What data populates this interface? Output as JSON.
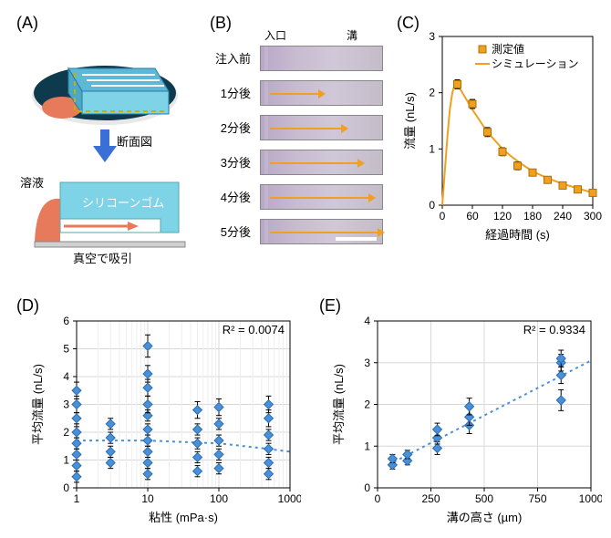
{
  "labels": {
    "A": "(A)",
    "B": "(B)",
    "C": "(C)",
    "D": "(D)",
    "E": "(E)"
  },
  "panelA": {
    "cross_section_title": "断面図",
    "solution_label": "溶液",
    "rubber_label": "シリコーンゴム",
    "vacuum_label": "真空で吸引",
    "dish_color": "#0d3b4d",
    "liquid_color": "#e67a5a",
    "rubber_color": "#7fd3e6",
    "rubber_text_color": "#ffffff",
    "arrow_color": "#e67a5a",
    "outline_color": "#c9b000"
  },
  "panelB": {
    "top_inlet": "入口",
    "top_groove": "溝",
    "rows": [
      {
        "label": "注入前",
        "arrow_len": 0
      },
      {
        "label": "1分後",
        "arrow_len": 55
      },
      {
        "label": "2分後",
        "arrow_len": 80
      },
      {
        "label": "3分後",
        "arrow_len": 98
      },
      {
        "label": "4分後",
        "arrow_len": 110
      },
      {
        "label": "5分後",
        "arrow_len": 120
      }
    ],
    "arrow_color": "#f0a020"
  },
  "panelC": {
    "type": "line+scatter",
    "xlabel": "経過時間 (s)",
    "ylabel": "流量 (nL/s)",
    "legend_measured": "測定値",
    "legend_sim": "シミュレーション",
    "xlim": [
      0,
      300
    ],
    "xtick_step": 60,
    "ylim": [
      0,
      3
    ],
    "ytick_step": 1,
    "marker_color": "#f0a020",
    "line_color": "#f0a020",
    "background": "#ffffff",
    "grid_color": "#d8d8d8",
    "sim_curve": [
      [
        0,
        0
      ],
      [
        5,
        0.6
      ],
      [
        10,
        1.2
      ],
      [
        15,
        1.7
      ],
      [
        20,
        2.0
      ],
      [
        25,
        2.15
      ],
      [
        30,
        2.15
      ],
      [
        40,
        2.0
      ],
      [
        50,
        1.85
      ],
      [
        60,
        1.7
      ],
      [
        75,
        1.5
      ],
      [
        90,
        1.3
      ],
      [
        105,
        1.15
      ],
      [
        120,
        1.0
      ],
      [
        140,
        0.85
      ],
      [
        160,
        0.72
      ],
      [
        180,
        0.6
      ],
      [
        210,
        0.48
      ],
      [
        240,
        0.38
      ],
      [
        270,
        0.3
      ],
      [
        300,
        0.22
      ]
    ],
    "points": [
      {
        "x": 30,
        "y": 2.15,
        "err": 0.08
      },
      {
        "x": 60,
        "y": 1.8,
        "err": 0.08
      },
      {
        "x": 90,
        "y": 1.3,
        "err": 0.08
      },
      {
        "x": 120,
        "y": 0.95,
        "err": 0.07
      },
      {
        "x": 150,
        "y": 0.7,
        "err": 0.07
      },
      {
        "x": 180,
        "y": 0.58,
        "err": 0.06
      },
      {
        "x": 210,
        "y": 0.45,
        "err": 0.06
      },
      {
        "x": 240,
        "y": 0.35,
        "err": 0.06
      },
      {
        "x": 270,
        "y": 0.28,
        "err": 0.05
      },
      {
        "x": 300,
        "y": 0.22,
        "err": 0.05
      }
    ]
  },
  "panelD": {
    "type": "scatter-logx",
    "xlabel": "粘性 (mPa·s)",
    "ylabel": "平均流量 (nL/s)",
    "r2_label": "R² = 0.0074",
    "xticks": [
      1,
      10,
      100,
      1000
    ],
    "ylim": [
      0,
      6
    ],
    "ytick_step": 1,
    "marker_color": "#4a90d9",
    "line_color": "#4a90d9",
    "grid_color": "#d8d8d8",
    "trend": [
      [
        1,
        1.7
      ],
      [
        10,
        1.7
      ],
      [
        100,
        1.6
      ],
      [
        500,
        1.4
      ],
      [
        1000,
        1.3
      ]
    ],
    "points": [
      {
        "x": 1,
        "y": 0.4,
        "err": 0.2
      },
      {
        "x": 1,
        "y": 0.8,
        "err": 0.2
      },
      {
        "x": 1,
        "y": 1.2,
        "err": 0.2
      },
      {
        "x": 1,
        "y": 1.6,
        "err": 0.2
      },
      {
        "x": 1,
        "y": 2.0,
        "err": 0.2
      },
      {
        "x": 1,
        "y": 2.5,
        "err": 0.2
      },
      {
        "x": 1,
        "y": 3.0,
        "err": 0.3
      },
      {
        "x": 1,
        "y": 3.5,
        "err": 0.3
      },
      {
        "x": 3,
        "y": 0.9,
        "err": 0.2
      },
      {
        "x": 3,
        "y": 1.3,
        "err": 0.2
      },
      {
        "x": 3,
        "y": 1.8,
        "err": 0.2
      },
      {
        "x": 3,
        "y": 2.3,
        "err": 0.2
      },
      {
        "x": 10,
        "y": 0.5,
        "err": 0.2
      },
      {
        "x": 10,
        "y": 0.9,
        "err": 0.2
      },
      {
        "x": 10,
        "y": 1.3,
        "err": 0.2
      },
      {
        "x": 10,
        "y": 1.7,
        "err": 0.2
      },
      {
        "x": 10,
        "y": 2.1,
        "err": 0.2
      },
      {
        "x": 10,
        "y": 2.6,
        "err": 0.2
      },
      {
        "x": 10,
        "y": 3.0,
        "err": 0.3
      },
      {
        "x": 10,
        "y": 3.6,
        "err": 0.3
      },
      {
        "x": 10,
        "y": 4.1,
        "err": 0.3
      },
      {
        "x": 10,
        "y": 5.1,
        "err": 0.4
      },
      {
        "x": 50,
        "y": 0.6,
        "err": 0.2
      },
      {
        "x": 50,
        "y": 1.1,
        "err": 0.2
      },
      {
        "x": 50,
        "y": 1.6,
        "err": 0.2
      },
      {
        "x": 50,
        "y": 2.1,
        "err": 0.2
      },
      {
        "x": 50,
        "y": 2.8,
        "err": 0.3
      },
      {
        "x": 100,
        "y": 0.7,
        "err": 0.2
      },
      {
        "x": 100,
        "y": 1.2,
        "err": 0.2
      },
      {
        "x": 100,
        "y": 1.7,
        "err": 0.2
      },
      {
        "x": 100,
        "y": 2.3,
        "err": 0.2
      },
      {
        "x": 100,
        "y": 2.9,
        "err": 0.3
      },
      {
        "x": 500,
        "y": 0.5,
        "err": 0.2
      },
      {
        "x": 500,
        "y": 0.9,
        "err": 0.2
      },
      {
        "x": 500,
        "y": 1.4,
        "err": 0.2
      },
      {
        "x": 500,
        "y": 1.9,
        "err": 0.2
      },
      {
        "x": 500,
        "y": 2.5,
        "err": 0.3
      },
      {
        "x": 500,
        "y": 3.0,
        "err": 0.3
      }
    ]
  },
  "panelE": {
    "type": "scatter",
    "xlabel": "溝の高さ (µm)",
    "ylabel": "平均流量 (nL/s)",
    "r2_label": "R² = 0.9334",
    "xlim": [
      0,
      1000
    ],
    "xtick_step": 250,
    "ylim": [
      0,
      4
    ],
    "ytick_step": 1,
    "marker_color": "#4a90d9",
    "line_color": "#4a90d9",
    "grid_color": "#d8d8d8",
    "trend": [
      [
        50,
        0.55
      ],
      [
        1000,
        3.05
      ]
    ],
    "points": [
      {
        "x": 70,
        "y": 0.55,
        "err": 0.1
      },
      {
        "x": 70,
        "y": 0.7,
        "err": 0.1
      },
      {
        "x": 140,
        "y": 0.65,
        "err": 0.1
      },
      {
        "x": 140,
        "y": 0.8,
        "err": 0.1
      },
      {
        "x": 280,
        "y": 0.95,
        "err": 0.15
      },
      {
        "x": 280,
        "y": 1.2,
        "err": 0.15
      },
      {
        "x": 280,
        "y": 1.4,
        "err": 0.15
      },
      {
        "x": 430,
        "y": 1.5,
        "err": 0.2
      },
      {
        "x": 430,
        "y": 1.7,
        "err": 0.2
      },
      {
        "x": 430,
        "y": 1.95,
        "err": 0.2
      },
      {
        "x": 860,
        "y": 2.1,
        "err": 0.25
      },
      {
        "x": 860,
        "y": 2.7,
        "err": 0.2
      },
      {
        "x": 860,
        "y": 3.0,
        "err": 0.2
      },
      {
        "x": 860,
        "y": 3.1,
        "err": 0.2
      }
    ]
  }
}
